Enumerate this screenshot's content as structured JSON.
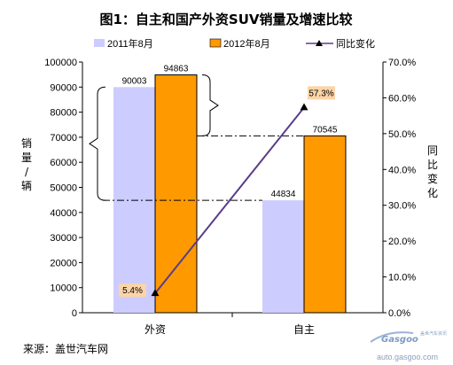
{
  "chart_data": {
    "type": "bar",
    "title": "图1：自主和国产外资SUV销量及增速比较",
    "categories": [
      "外资",
      "自主"
    ],
    "series": [
      {
        "name": "2011年8月",
        "values": [
          90003,
          44834
        ],
        "color": "#ccccff"
      },
      {
        "name": "2012年8月",
        "values": [
          94863,
          70545
        ],
        "color": "#ff9900"
      }
    ],
    "line_series": {
      "name": "同比变化",
      "values": [
        5.4,
        57.3
      ],
      "labels": [
        "5.4%",
        "57.3%"
      ],
      "color": "#5a3d8a"
    },
    "ylabel": "销量/辆",
    "y2label": "同比变化",
    "ylim": [
      0,
      100000
    ],
    "y2lim": [
      0,
      70
    ],
    "yticks": [
      "0",
      "10000",
      "20000",
      "30000",
      "40000",
      "50000",
      "60000",
      "70000",
      "80000",
      "90000",
      "100000"
    ],
    "y2ticks": [
      "0.0%",
      "10.0%",
      "20.0%",
      "30.0%",
      "40.0%",
      "50.0%",
      "60.0%",
      "70.0%"
    ],
    "data_labels": [
      "90003",
      "44834",
      "94863",
      "70545"
    ],
    "legend_position": "top"
  },
  "source": "来源：盖世汽车网",
  "watermark": {
    "brand": "Gasgoo",
    "cn": "盖世汽车资讯",
    "url": "auto.gasgoo.com"
  }
}
